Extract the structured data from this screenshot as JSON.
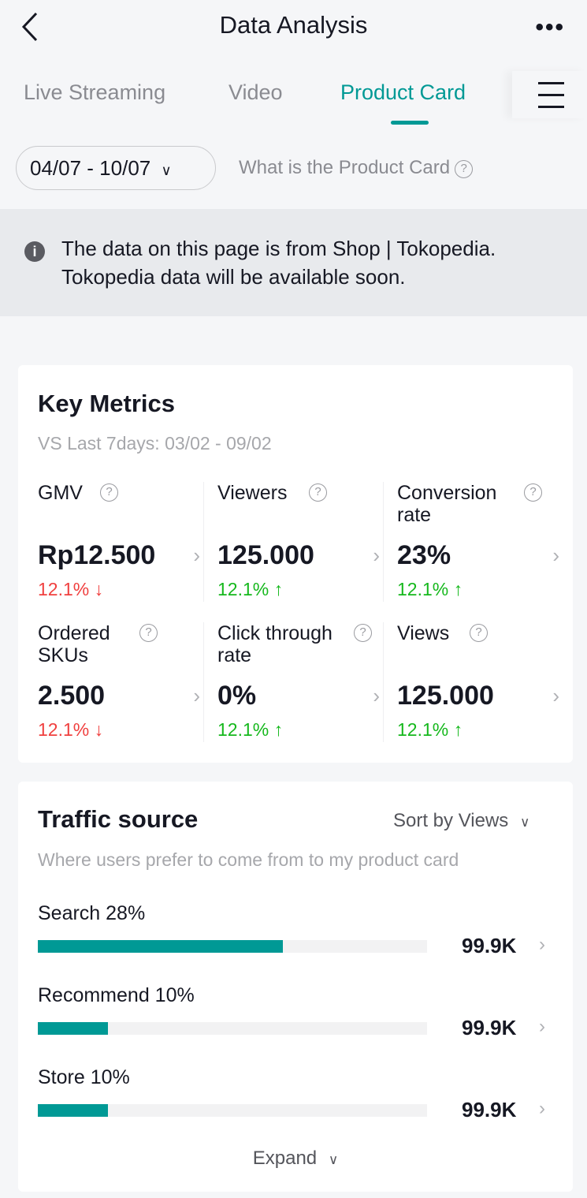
{
  "header": {
    "title": "Data Analysis",
    "more": "•••"
  },
  "tabs": [
    {
      "label": "Live Streaming"
    },
    {
      "label": "Video"
    },
    {
      "label": "Product Card",
      "active": true
    }
  ],
  "date_range": "04/07 - 10/07",
  "what_link": "What is the Product Card",
  "notice": {
    "line1": "The data on this page is from Shop | Tokopedia.",
    "line2": "Tokopedia data will be available soon."
  },
  "key_metrics": {
    "title": "Key Metrics",
    "compare": "VS Last 7days: 03/02 - 09/02",
    "items": [
      {
        "label": "GMV",
        "value": "Rp12.500",
        "change": "12.1%",
        "trend": "down"
      },
      {
        "label": "Viewers",
        "value": "125.000",
        "change": "12.1%",
        "trend": "up"
      },
      {
        "label": "Conversion rate",
        "value": "23%",
        "change": "12.1%",
        "trend": "up"
      },
      {
        "label": "Ordered SKUs",
        "value": "2.500",
        "change": "12.1%",
        "trend": "down"
      },
      {
        "label": "Click through rate",
        "value": "0%",
        "change": "12.1%",
        "trend": "up"
      },
      {
        "label": "Views",
        "value": "125.000",
        "change": "12.1%",
        "trend": "up"
      }
    ]
  },
  "traffic": {
    "title": "Traffic source",
    "sort": "Sort by Views",
    "subtitle": "Where users prefer to come from to my product card",
    "items": [
      {
        "label": "Search 28%",
        "value": "99.9K",
        "fill": 0.63
      },
      {
        "label": "Recommend 10%",
        "value": "99.9K",
        "fill": 0.18
      },
      {
        "label": "Store 10%",
        "value": "99.9K",
        "fill": 0.18
      }
    ],
    "expand": "Expand"
  },
  "colors": {
    "accent": "#009995",
    "down": "#f0403f",
    "up": "#16b81d"
  }
}
